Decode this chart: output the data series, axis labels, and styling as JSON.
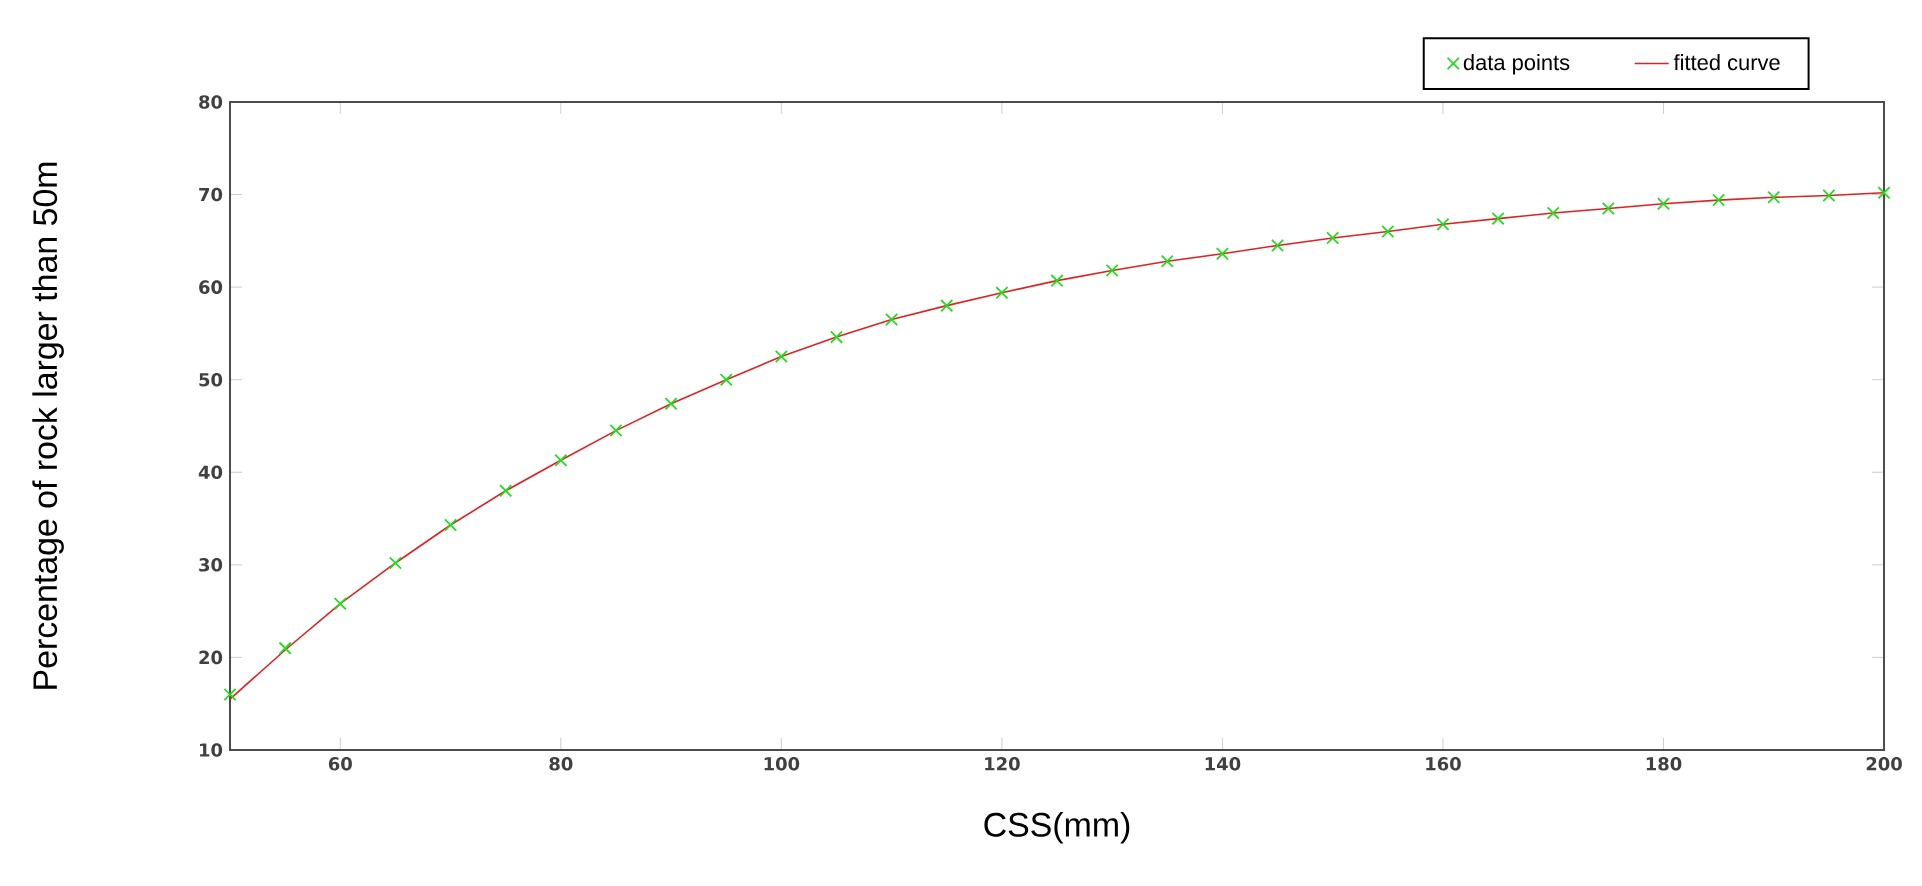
{
  "chart_data": {
    "type": "line",
    "xlabel": "CSS(mm)",
    "ylabel": "Percentage of rock larger than 50m",
    "xlim": [
      50,
      200
    ],
    "ylim": [
      10,
      80
    ],
    "xticks": [
      60,
      80,
      100,
      120,
      140,
      160,
      180,
      200
    ],
    "yticks": [
      10,
      20,
      30,
      40,
      50,
      60,
      70,
      80
    ],
    "grid": false,
    "legend": "top right",
    "series": [
      {
        "name": "data points",
        "type": "scatter",
        "marker": "cross",
        "color": "#22dd22",
        "x": [
          50,
          55,
          60,
          65,
          70,
          75,
          80,
          85,
          90,
          95,
          100,
          105,
          110,
          115,
          120,
          125,
          130,
          135,
          140,
          145,
          150,
          155,
          160,
          165,
          170,
          175,
          180,
          185,
          190,
          195,
          200
        ],
        "values": [
          16.0,
          21.0,
          25.8,
          30.2,
          34.3,
          38.0,
          41.3,
          44.5,
          47.4,
          50.0,
          52.5,
          54.6,
          56.5,
          58.0,
          59.4,
          60.7,
          61.8,
          62.8,
          63.6,
          64.5,
          65.3,
          66.0,
          66.8,
          67.4,
          68.0,
          68.5,
          69.0,
          69.4,
          69.7,
          69.9,
          70.2
        ]
      },
      {
        "name": "fitted curve",
        "marker": "none",
        "line_style": "solid",
        "color": "#dd2222",
        "x": [
          50,
          55,
          60,
          65,
          70,
          75,
          80,
          85,
          90,
          95,
          100,
          105,
          110,
          115,
          120,
          125,
          130,
          135,
          140,
          145,
          150,
          155,
          160,
          165,
          170,
          175,
          180,
          185,
          190,
          195,
          200
        ],
        "values": [
          15.5,
          20.8,
          25.8,
          30.2,
          34.3,
          38.0,
          41.3,
          44.5,
          47.4,
          50.0,
          52.5,
          54.6,
          56.5,
          58.0,
          59.4,
          60.7,
          61.8,
          62.8,
          63.6,
          64.5,
          65.3,
          66.0,
          66.8,
          67.4,
          68.0,
          68.5,
          69.0,
          69.4,
          69.7,
          69.9,
          70.2
        ]
      }
    ]
  }
}
